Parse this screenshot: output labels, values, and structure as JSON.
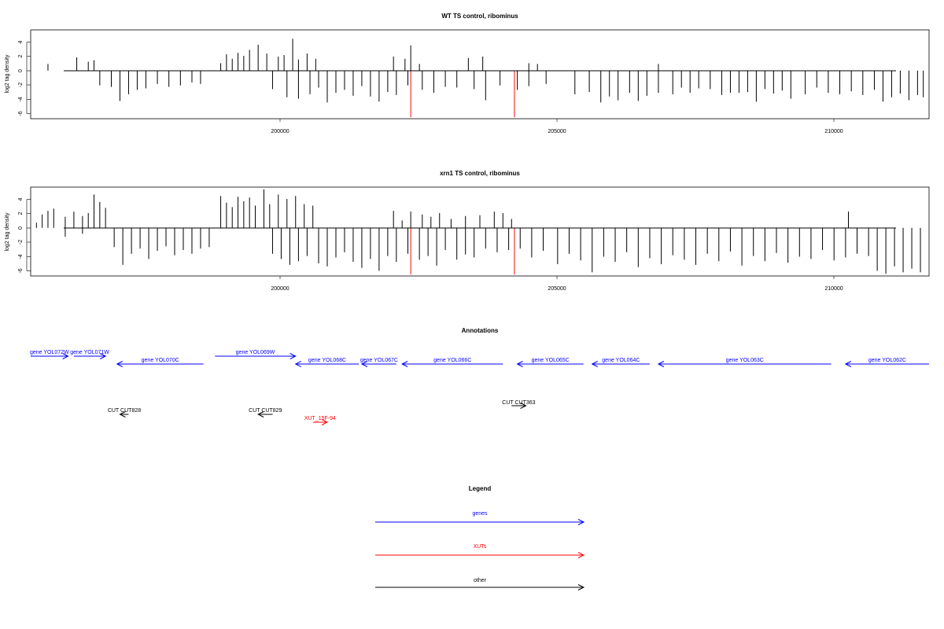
{
  "chart_data": [
    {
      "type": "bar",
      "title": "WT TS control, ribominus",
      "ylabel": "log2 tag density",
      "xlim": [
        196100,
        211700
      ],
      "ylim": [
        -6.5,
        5.5
      ],
      "x_ticks": [
        "200000",
        "205000",
        "210000"
      ],
      "y_ticks": [
        "4",
        "2",
        "0",
        "-2",
        "-4",
        "-6"
      ],
      "highlight_color": "#ff3333",
      "highlights": [
        {
          "x": 202700,
          "y": -6.3
        },
        {
          "x": 204500,
          "y": -6.3
        }
      ],
      "series": [
        {
          "values": [
            [
              196400,
              0.9
            ],
            [
              196900,
              1.8
            ],
            [
              197100,
              1.2
            ],
            [
              197200,
              1.4
            ],
            [
              197300,
              -2.0
            ],
            [
              197500,
              -2.2
            ],
            [
              197650,
              -4.1
            ],
            [
              197800,
              -3.2
            ],
            [
              197950,
              -2.6
            ],
            [
              198100,
              -2.4
            ],
            [
              198300,
              -1.8
            ],
            [
              198500,
              -2.2
            ],
            [
              198700,
              -2.0
            ],
            [
              198900,
              -1.6
            ],
            [
              199050,
              -1.8
            ],
            [
              199400,
              1.0
            ],
            [
              199500,
              2.2
            ],
            [
              199600,
              1.6
            ],
            [
              199700,
              2.4
            ],
            [
              199800,
              2.0
            ],
            [
              199900,
              2.8
            ],
            [
              200050,
              3.5
            ],
            [
              200200,
              2.3
            ],
            [
              200400,
              1.9
            ],
            [
              200500,
              2.1
            ],
            [
              200650,
              4.3
            ],
            [
              200750,
              1.5
            ],
            [
              200900,
              2.3
            ],
            [
              201050,
              1.6
            ],
            [
              200300,
              -2.5
            ],
            [
              200550,
              -3.6
            ],
            [
              200750,
              -3.8
            ],
            [
              200950,
              -3.2
            ],
            [
              201100,
              -2.3
            ],
            [
              201250,
              -4.3
            ],
            [
              201400,
              -3.0
            ],
            [
              201550,
              -2.6
            ],
            [
              201700,
              -3.4
            ],
            [
              201850,
              -2.1
            ],
            [
              202000,
              -3.5
            ],
            [
              202150,
              -4.2
            ],
            [
              202300,
              -2.9
            ],
            [
              202450,
              -3.3
            ],
            [
              202650,
              -2.0
            ],
            [
              202900,
              -2.6
            ],
            [
              203100,
              -3.0
            ],
            [
              203300,
              -2.2
            ],
            [
              202400,
              1.9
            ],
            [
              202600,
              1.6
            ],
            [
              202700,
              3.4
            ],
            [
              202850,
              0.9
            ],
            [
              203700,
              1.7
            ],
            [
              203950,
              1.9
            ],
            [
              203500,
              -2.3
            ],
            [
              203800,
              -2.5
            ],
            [
              204000,
              -4.0
            ],
            [
              204250,
              -2.0
            ],
            [
              204550,
              -2.6
            ],
            [
              204750,
              -2.1
            ],
            [
              205050,
              -1.8
            ],
            [
              204750,
              1.0
            ],
            [
              204900,
              0.9
            ],
            [
              205550,
              -3.2
            ],
            [
              205800,
              -2.9
            ],
            [
              206000,
              -4.3
            ],
            [
              206150,
              -3.5
            ],
            [
              206300,
              -4.0
            ],
            [
              206500,
              -3.0
            ],
            [
              206650,
              -4.1
            ],
            [
              206800,
              -3.4
            ],
            [
              207000,
              -3.0
            ],
            [
              207250,
              -3.2
            ],
            [
              207400,
              -2.3
            ],
            [
              207550,
              -3.0
            ],
            [
              207700,
              -2.4
            ],
            [
              207900,
              -2.5
            ],
            [
              208100,
              -3.3
            ],
            [
              208250,
              -3.0
            ],
            [
              208400,
              -3.0
            ],
            [
              208550,
              -2.9
            ],
            [
              208700,
              -4.2
            ],
            [
              208850,
              -2.5
            ],
            [
              209000,
              -3.1
            ],
            [
              209150,
              -2.7
            ],
            [
              209300,
              -3.8
            ],
            [
              209550,
              -3.2
            ],
            [
              209750,
              -2.3
            ],
            [
              209950,
              -3.0
            ],
            [
              210150,
              -3.2
            ],
            [
              210350,
              -2.8
            ],
            [
              210550,
              -3.3
            ],
            [
              210750,
              -2.6
            ],
            [
              210900,
              -4.2
            ],
            [
              211050,
              -3.6
            ],
            [
              211200,
              -3.1
            ],
            [
              211350,
              -4.0
            ],
            [
              211500,
              -3.3
            ],
            [
              211600,
              -3.6
            ],
            [
              207000,
              0.9
            ]
          ]
        }
      ]
    },
    {
      "type": "bar",
      "title": "xrn1 TS control, ribominus",
      "ylabel": "log2 tag density",
      "xlim": [
        196100,
        211700
      ],
      "ylim": [
        -6.5,
        5.5
      ],
      "x_ticks": [
        "200000",
        "205000",
        "210000"
      ],
      "y_ticks": [
        "4",
        "2",
        "0",
        "-2",
        "-4",
        "-6"
      ],
      "highlight_color": "#ff3333",
      "highlights": [
        {
          "x": 202700,
          "y": -6.3
        },
        {
          "x": 204500,
          "y": -6.3
        }
      ],
      "series": [
        {
          "values": [
            [
              196200,
              0.7
            ],
            [
              196300,
              1.8
            ],
            [
              196400,
              2.3
            ],
            [
              196500,
              2.6
            ],
            [
              196700,
              1.5
            ],
            [
              196850,
              2.2
            ],
            [
              197000,
              1.6
            ],
            [
              197100,
              2.0
            ],
            [
              197200,
              4.5
            ],
            [
              197300,
              3.5
            ],
            [
              197400,
              2.7
            ],
            [
              196700,
              -1.2
            ],
            [
              197000,
              -0.8
            ],
            [
              197550,
              -2.6
            ],
            [
              197700,
              -5.0
            ],
            [
              197850,
              -3.5
            ],
            [
              198000,
              -2.8
            ],
            [
              198150,
              -4.2
            ],
            [
              198300,
              -3.1
            ],
            [
              198450,
              -2.5
            ],
            [
              198600,
              -3.7
            ],
            [
              198750,
              -3.0
            ],
            [
              198900,
              -3.5
            ],
            [
              199050,
              -2.8
            ],
            [
              199200,
              -2.6
            ],
            [
              199400,
              4.3
            ],
            [
              199500,
              3.4
            ],
            [
              199600,
              2.8
            ],
            [
              199700,
              4.2
            ],
            [
              199800,
              3.6
            ],
            [
              199900,
              4.1
            ],
            [
              200000,
              3.0
            ],
            [
              200150,
              5.2
            ],
            [
              200250,
              3.2
            ],
            [
              200400,
              4.5
            ],
            [
              200550,
              3.9
            ],
            [
              200700,
              4.3
            ],
            [
              200850,
              3.2
            ],
            [
              201000,
              3.0
            ],
            [
              200300,
              -3.5
            ],
            [
              200450,
              -4.2
            ],
            [
              200600,
              -5.0
            ],
            [
              200750,
              -4.5
            ],
            [
              200900,
              -3.8
            ],
            [
              201100,
              -4.8
            ],
            [
              201250,
              -5.2
            ],
            [
              201400,
              -4.0
            ],
            [
              201550,
              -3.3
            ],
            [
              201700,
              -4.6
            ],
            [
              201850,
              -5.4
            ],
            [
              202000,
              -4.2
            ],
            [
              202150,
              -5.8
            ],
            [
              202300,
              -3.8
            ],
            [
              202450,
              -4.6
            ],
            [
              202400,
              2.3
            ],
            [
              202550,
              1.0
            ],
            [
              202700,
              2.2
            ],
            [
              202900,
              1.8
            ],
            [
              203050,
              1.5
            ],
            [
              203200,
              2.0
            ],
            [
              203400,
              1.2
            ],
            [
              202650,
              -3.5
            ],
            [
              202850,
              -4.3
            ],
            [
              203000,
              -3.8
            ],
            [
              203150,
              -5.1
            ],
            [
              203300,
              -3.0
            ],
            [
              203500,
              -4.3
            ],
            [
              203650,
              -3.6
            ],
            [
              203800,
              -4.0
            ],
            [
              204000,
              -2.8
            ],
            [
              204200,
              -3.3
            ],
            [
              204400,
              -3.0
            ],
            [
              203650,
              1.6
            ],
            [
              203900,
              1.7
            ],
            [
              204150,
              2.2
            ],
            [
              204300,
              2.0
            ],
            [
              204450,
              1.2
            ],
            [
              204600,
              -2.8
            ],
            [
              204800,
              -4.0
            ],
            [
              205000,
              -3.1
            ],
            [
              205250,
              -4.9
            ],
            [
              205450,
              -3.5
            ],
            [
              205650,
              -4.4
            ],
            [
              205850,
              -6.0
            ],
            [
              206050,
              -3.9
            ],
            [
              206250,
              -4.6
            ],
            [
              206450,
              -3.3
            ],
            [
              206650,
              -5.3
            ],
            [
              206850,
              -4.1
            ],
            [
              207050,
              -4.9
            ],
            [
              207250,
              -3.7
            ],
            [
              207450,
              -4.3
            ],
            [
              207650,
              -5.0
            ],
            [
              207850,
              -3.5
            ],
            [
              208050,
              -4.5
            ],
            [
              208250,
              -3.2
            ],
            [
              208450,
              -5.1
            ],
            [
              208650,
              -3.8
            ],
            [
              208850,
              -4.5
            ],
            [
              209050,
              -3.4
            ],
            [
              209250,
              -4.7
            ],
            [
              209450,
              -3.9
            ],
            [
              209650,
              -4.2
            ],
            [
              209850,
              -3.0
            ],
            [
              210050,
              -4.4
            ],
            [
              210250,
              -4.0
            ],
            [
              210450,
              -3.5
            ],
            [
              210650,
              -3.8
            ],
            [
              210800,
              -5.8
            ],
            [
              210950,
              -6.2
            ],
            [
              211100,
              -5.2
            ],
            [
              211250,
              -6.0
            ],
            [
              211400,
              -5.5
            ],
            [
              211550,
              -6.0
            ],
            [
              210300,
              2.2
            ]
          ]
        }
      ]
    }
  ],
  "annotations": {
    "title": "Annotations",
    "features": [
      {
        "label": "gene YOL072W",
        "kind": "gene",
        "strand": "+",
        "start": 196100,
        "end": 196750,
        "row": 0
      },
      {
        "label": "gene YOL071W",
        "kind": "gene",
        "strand": "+",
        "start": 196850,
        "end": 197400,
        "row": 0
      },
      {
        "label": "gene YOL070C",
        "kind": "gene",
        "strand": "-",
        "start": 197600,
        "end": 199100,
        "row": 1
      },
      {
        "label": "gene YOL069W",
        "kind": "gene",
        "strand": "+",
        "start": 199300,
        "end": 200700,
        "row": 0
      },
      {
        "label": "gene YOL068C",
        "kind": "gene",
        "strand": "-",
        "start": 200700,
        "end": 201800,
        "row": 1
      },
      {
        "label": "gene YOL067C",
        "kind": "gene",
        "strand": "-",
        "start": 201850,
        "end": 202450,
        "row": 1
      },
      {
        "label": "gene YOL066C",
        "kind": "gene",
        "strand": "-",
        "start": 202550,
        "end": 204300,
        "row": 1
      },
      {
        "label": "gene YOL065C",
        "kind": "gene",
        "strand": "-",
        "start": 204550,
        "end": 205700,
        "row": 1
      },
      {
        "label": "gene YOL064C",
        "kind": "gene",
        "strand": "-",
        "start": 205850,
        "end": 206850,
        "row": 1
      },
      {
        "label": "gene YOL063C",
        "kind": "gene",
        "strand": "-",
        "start": 207000,
        "end": 210000,
        "row": 1
      },
      {
        "label": "gene YOL062C",
        "kind": "gene",
        "strand": "-",
        "start": 210250,
        "end": 211700,
        "row": 1
      },
      {
        "label": "CUT CUT828",
        "kind": "other",
        "strand": "-",
        "start": 197650,
        "end": 197800,
        "row": 2
      },
      {
        "label": "CUT CUT829",
        "kind": "other",
        "strand": "-",
        "start": 200050,
        "end": 200300,
        "row": 2
      },
      {
        "label": "CUT CUT363",
        "kind": "other",
        "strand": "+",
        "start": 204450,
        "end": 204700,
        "row": 3
      },
      {
        "label": "XUT_15F-94",
        "kind": "xut",
        "strand": "+",
        "start": 201000,
        "end": 201250,
        "row": 4
      }
    ]
  },
  "legend": {
    "title": "Legend",
    "items": [
      {
        "label": "genes",
        "color": "#0000ff"
      },
      {
        "label": "XUTs",
        "color": "#ff0000"
      },
      {
        "label": "other",
        "color": "#000000"
      }
    ]
  }
}
